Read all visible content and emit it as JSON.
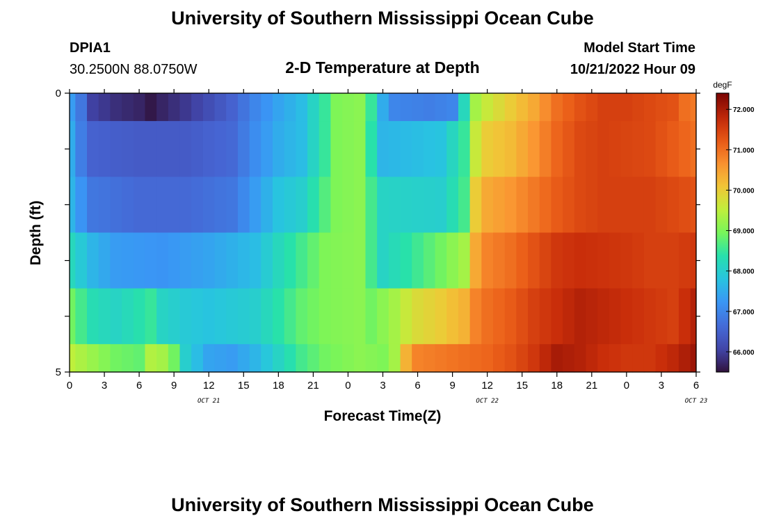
{
  "page": {
    "title": "University of Southern Mississippi Ocean Cube",
    "footer_title": "University of Southern Mississippi Ocean Cube"
  },
  "header": {
    "station": "DPIA1",
    "coords": "30.2500N  88.0750W",
    "plot_title": "2-D Temperature at Depth",
    "start_label": "Model Start Time",
    "start_value": "10/21/2022 Hour 09"
  },
  "chart_data": {
    "type": "heatmap",
    "xlabel": "Forecast Time(Z)",
    "ylabel": "Depth (ft)",
    "colorbar_label": "degF",
    "x_ticks": [
      "0",
      "3",
      "6",
      "9",
      "12",
      "15",
      "18",
      "21",
      "0",
      "3",
      "6",
      "9",
      "12",
      "15",
      "18",
      "21",
      "0",
      "3",
      "6"
    ],
    "date_labels": [
      {
        "label": "OCT 21",
        "hour": 12
      },
      {
        "label": "OCT 22",
        "hour": 36
      },
      {
        "label": "OCT 23",
        "hour": 60
      }
    ],
    "y_tick_labels": [
      {
        "label": "0",
        "depth": 0
      },
      {
        "label": "5",
        "depth": 5
      }
    ],
    "y_range": [
      0,
      5
    ],
    "x_range_hours": [
      0,
      54
    ],
    "depth_levels": [
      0,
      1,
      2,
      3,
      4,
      5
    ],
    "colorbar": {
      "min": 65.5,
      "max": 72.4,
      "ticks": [
        "66.000",
        "67.000",
        "68.000",
        "69.000",
        "70.000",
        "71.000",
        "72.000"
      ],
      "tick_values": [
        66,
        67,
        68,
        69,
        70,
        71,
        72
      ]
    },
    "rows": [
      {
        "depth": 0,
        "keys": [
          [
            0,
            67.3
          ],
          [
            1,
            66.8
          ],
          [
            2,
            66.0
          ],
          [
            4,
            65.8
          ],
          [
            6,
            65.7
          ],
          [
            7.5,
            65.5
          ],
          [
            8,
            65.7
          ],
          [
            10,
            65.9
          ],
          [
            12,
            66.2
          ],
          [
            14,
            66.5
          ],
          [
            16,
            67.0
          ],
          [
            18,
            67.4
          ],
          [
            20,
            67.7
          ],
          [
            22,
            68.5
          ],
          [
            23,
            69.0
          ],
          [
            25,
            69.1
          ],
          [
            26,
            68.5
          ],
          [
            27,
            67.5
          ],
          [
            28,
            67.0
          ],
          [
            31,
            66.9
          ],
          [
            33,
            67.0
          ],
          [
            34,
            68.2
          ],
          [
            35,
            69.3
          ],
          [
            36,
            69.6
          ],
          [
            38,
            70.0
          ],
          [
            40,
            70.4
          ],
          [
            42,
            71.0
          ],
          [
            44,
            71.3
          ],
          [
            46,
            71.5
          ],
          [
            48,
            71.5
          ],
          [
            50,
            71.4
          ],
          [
            52,
            71.3
          ],
          [
            53,
            71.0
          ],
          [
            54,
            70.9
          ]
        ]
      },
      {
        "depth": 1,
        "keys": [
          [
            0,
            67.5
          ],
          [
            1,
            66.9
          ],
          [
            2,
            66.5
          ],
          [
            6,
            66.4
          ],
          [
            10,
            66.4
          ],
          [
            14,
            66.6
          ],
          [
            16,
            67.1
          ],
          [
            18,
            67.5
          ],
          [
            20,
            67.7
          ],
          [
            22,
            68.5
          ],
          [
            23,
            69.0
          ],
          [
            25,
            69.1
          ],
          [
            26,
            68.4
          ],
          [
            27,
            67.6
          ],
          [
            32,
            67.8
          ],
          [
            34,
            68.5
          ],
          [
            35,
            69.6
          ],
          [
            36,
            70.0
          ],
          [
            38,
            70.2
          ],
          [
            40,
            70.6
          ],
          [
            42,
            71.1
          ],
          [
            44,
            71.4
          ],
          [
            46,
            71.5
          ],
          [
            50,
            71.4
          ],
          [
            52,
            71.2
          ],
          [
            54,
            71.0
          ]
        ]
      },
      {
        "depth": 2,
        "keys": [
          [
            0,
            67.6
          ],
          [
            1,
            67.2
          ],
          [
            2,
            66.8
          ],
          [
            6,
            66.6
          ],
          [
            10,
            66.6
          ],
          [
            14,
            66.8
          ],
          [
            16,
            67.3
          ],
          [
            18,
            67.8
          ],
          [
            20,
            68.0
          ],
          [
            22,
            68.7
          ],
          [
            23,
            69.0
          ],
          [
            25,
            69.1
          ],
          [
            26,
            68.6
          ],
          [
            27,
            68.1
          ],
          [
            32,
            68.0
          ],
          [
            34,
            68.6
          ],
          [
            35,
            70.0
          ],
          [
            36,
            70.4
          ],
          [
            38,
            70.6
          ],
          [
            40,
            70.9
          ],
          [
            42,
            71.2
          ],
          [
            44,
            71.4
          ],
          [
            46,
            71.5
          ],
          [
            50,
            71.5
          ],
          [
            52,
            71.4
          ],
          [
            54,
            71.3
          ]
        ]
      },
      {
        "depth": 3,
        "keys": [
          [
            0,
            68.2
          ],
          [
            2,
            67.6
          ],
          [
            4,
            67.3
          ],
          [
            8,
            67.2
          ],
          [
            12,
            67.4
          ],
          [
            16,
            67.7
          ],
          [
            18,
            68.2
          ],
          [
            20,
            68.6
          ],
          [
            22,
            69.0
          ],
          [
            25,
            69.1
          ],
          [
            26,
            68.6
          ],
          [
            27,
            68.1
          ],
          [
            29,
            68.4
          ],
          [
            32,
            68.9
          ],
          [
            34,
            69.3
          ],
          [
            35,
            70.4
          ],
          [
            36,
            70.8
          ],
          [
            38,
            71.0
          ],
          [
            40,
            71.3
          ],
          [
            42,
            71.6
          ],
          [
            44,
            71.7
          ],
          [
            48,
            71.6
          ],
          [
            50,
            71.5
          ],
          [
            52,
            71.5
          ],
          [
            54,
            71.6
          ]
        ]
      },
      {
        "depth": 4,
        "keys": [
          [
            0,
            68.9
          ],
          [
            2,
            68.3
          ],
          [
            4,
            68.1
          ],
          [
            7,
            68.5
          ],
          [
            8,
            68.1
          ],
          [
            10,
            67.9
          ],
          [
            12,
            67.8
          ],
          [
            16,
            68.0
          ],
          [
            18,
            68.4
          ],
          [
            20,
            68.8
          ],
          [
            22,
            69.0
          ],
          [
            25,
            69.1
          ],
          [
            26,
            68.9
          ],
          [
            28,
            69.3
          ],
          [
            29,
            69.6
          ],
          [
            30,
            69.8
          ],
          [
            32,
            70.0
          ],
          [
            34,
            70.3
          ],
          [
            35,
            70.8
          ],
          [
            36,
            71.0
          ],
          [
            38,
            71.2
          ],
          [
            40,
            71.5
          ],
          [
            42,
            71.7
          ],
          [
            44,
            71.9
          ],
          [
            46,
            71.8
          ],
          [
            50,
            71.6
          ],
          [
            52,
            71.5
          ],
          [
            54,
            71.9
          ]
        ]
      },
      {
        "depth": 5,
        "keys": [
          [
            0,
            69.5
          ],
          [
            2,
            69.2
          ],
          [
            4,
            68.9
          ],
          [
            6,
            68.8
          ],
          [
            7,
            69.4
          ],
          [
            8,
            69.3
          ],
          [
            9,
            68.9
          ],
          [
            10,
            68.0
          ],
          [
            12,
            67.4
          ],
          [
            14,
            67.3
          ],
          [
            16,
            67.6
          ],
          [
            18,
            68.1
          ],
          [
            20,
            68.6
          ],
          [
            22,
            68.9
          ],
          [
            25,
            69.1
          ],
          [
            27,
            69.0
          ],
          [
            28,
            69.3
          ],
          [
            29,
            70.3
          ],
          [
            30,
            70.8
          ],
          [
            32,
            70.9
          ],
          [
            34,
            71.0
          ],
          [
            36,
            71.1
          ],
          [
            38,
            71.3
          ],
          [
            40,
            71.6
          ],
          [
            42,
            72.0
          ],
          [
            44,
            71.9
          ],
          [
            46,
            71.7
          ],
          [
            48,
            71.6
          ],
          [
            50,
            71.6
          ],
          [
            52,
            71.8
          ],
          [
            54,
            72.1
          ]
        ]
      }
    ]
  }
}
